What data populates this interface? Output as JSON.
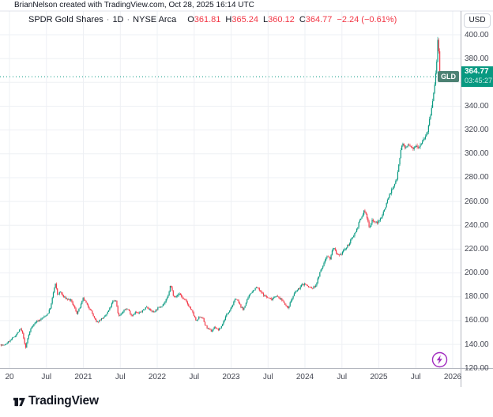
{
  "attribution": "BrianNelson created with TradingView.com, Oct 28, 2025 16:14 UTC",
  "legend": {
    "title": "SPDR Gold Shares",
    "sep": "·",
    "interval": "1D",
    "exchange": "NYSE Arca",
    "o_label": "O",
    "o": "361.81",
    "h_label": "H",
    "h": "365.24",
    "l_label": "L",
    "l": "360.12",
    "c_label": "C",
    "c": "364.77",
    "change": "−2.24 (−0.61%)"
  },
  "price_axis": {
    "currency": "USD",
    "badge": {
      "symbol": "GLD",
      "price": "364.77",
      "countdown": "03:45:27"
    }
  },
  "footer": {
    "brand": "TradingView"
  },
  "colors": {
    "up": "#089981",
    "down": "#f23645",
    "grid": "#eef0f4",
    "axis_line": "#b2b5be",
    "axis_text": "#434651",
    "badge_bg": "#089981",
    "tag_bg": "#4c8173",
    "lightning": "#a12cbf",
    "price_line": "#089981"
  },
  "chart_data": {
    "type": "candlestick",
    "symbol": "GLD",
    "title": "SPDR Gold Shares",
    "interval": "1D",
    "exchange": "NYSE Arca",
    "last_bar": {
      "open": 361.81,
      "high": 365.24,
      "low": 360.12,
      "close": 364.77,
      "change": -2.24,
      "change_pct": -0.61
    },
    "price_line_value": 364.77,
    "countdown": "03:45:27",
    "ylim": [
      120,
      410
    ],
    "x_range_years": [
      2019.87,
      2025.83
    ],
    "grid": true,
    "y_ticks": [
      {
        "v": 400,
        "label": "400.00"
      },
      {
        "v": 380,
        "label": "380.00"
      },
      {
        "v": 360,
        "label": "360.00"
      },
      {
        "v": 340,
        "label": "340.00"
      },
      {
        "v": 320,
        "label": "320.00"
      },
      {
        "v": 300,
        "label": "300.00"
      },
      {
        "v": 280,
        "label": "280.00"
      },
      {
        "v": 260,
        "label": "260.00"
      },
      {
        "v": 240,
        "label": "240.00"
      },
      {
        "v": 220,
        "label": "220.00"
      },
      {
        "v": 200,
        "label": "200.00"
      },
      {
        "v": 180,
        "label": "180.00"
      },
      {
        "v": 160,
        "label": "160.00"
      },
      {
        "v": 140,
        "label": "140.00"
      },
      {
        "v": 120,
        "label": "120.00"
      }
    ],
    "x_ticks": [
      {
        "label": "20",
        "t": 2020.0
      },
      {
        "label": "Jul",
        "t": 2020.5
      },
      {
        "label": "2021",
        "t": 2021.0
      },
      {
        "label": "Jul",
        "t": 2021.5
      },
      {
        "label": "2022",
        "t": 2022.0
      },
      {
        "label": "Jul",
        "t": 2022.5
      },
      {
        "label": "2023",
        "t": 2023.0
      },
      {
        "label": "Jul",
        "t": 2023.5
      },
      {
        "label": "2024",
        "t": 2024.0
      },
      {
        "label": "Jul",
        "t": 2024.5
      },
      {
        "label": "2025",
        "t": 2025.0
      },
      {
        "label": "Jul",
        "t": 2025.5
      },
      {
        "label": "2026",
        "t": 2026.0
      }
    ],
    "anchors": [
      [
        2019.872,
        140
      ],
      [
        2019.93,
        139
      ],
      [
        2020.0,
        143
      ],
      [
        2020.06,
        146
      ],
      [
        2020.1,
        149
      ],
      [
        2020.15,
        153
      ],
      [
        2020.185,
        148
      ],
      [
        2020.215,
        136
      ],
      [
        2020.25,
        146
      ],
      [
        2020.3,
        155
      ],
      [
        2020.36,
        159
      ],
      [
        2020.42,
        161
      ],
      [
        2020.47,
        163
      ],
      [
        2020.52,
        166
      ],
      [
        2020.56,
        172
      ],
      [
        2020.595,
        184
      ],
      [
        2020.62,
        191
      ],
      [
        2020.65,
        182
      ],
      [
        2020.69,
        184
      ],
      [
        2020.73,
        180
      ],
      [
        2020.78,
        178
      ],
      [
        2020.83,
        177
      ],
      [
        2020.87,
        172
      ],
      [
        2020.915,
        166
      ],
      [
        2020.96,
        172
      ],
      [
        2021.0,
        179
      ],
      [
        2021.05,
        173
      ],
      [
        2021.1,
        169
      ],
      [
        2021.14,
        163
      ],
      [
        2021.18,
        158
      ],
      [
        2021.23,
        161
      ],
      [
        2021.29,
        163
      ],
      [
        2021.34,
        168
      ],
      [
        2021.4,
        176
      ],
      [
        2021.44,
        177
      ],
      [
        2021.475,
        164
      ],
      [
        2021.52,
        166
      ],
      [
        2021.57,
        170
      ],
      [
        2021.61,
        169
      ],
      [
        2021.655,
        164
      ],
      [
        2021.7,
        167
      ],
      [
        2021.75,
        166
      ],
      [
        2021.8,
        168
      ],
      [
        2021.86,
        172
      ],
      [
        2021.9,
        169
      ],
      [
        2021.95,
        167
      ],
      [
        2022.0,
        170
      ],
      [
        2022.05,
        172
      ],
      [
        2022.1,
        175
      ],
      [
        2022.145,
        180
      ],
      [
        2022.18,
        190
      ],
      [
        2022.22,
        181
      ],
      [
        2022.26,
        180
      ],
      [
        2022.3,
        183
      ],
      [
        2022.34,
        179
      ],
      [
        2022.38,
        177
      ],
      [
        2022.43,
        172
      ],
      [
        2022.47,
        168
      ],
      [
        2022.53,
        159
      ],
      [
        2022.57,
        163
      ],
      [
        2022.61,
        163
      ],
      [
        2022.65,
        156
      ],
      [
        2022.69,
        153
      ],
      [
        2022.735,
        151
      ],
      [
        2022.78,
        155
      ],
      [
        2022.82,
        152
      ],
      [
        2022.85,
        153
      ],
      [
        2022.89,
        158
      ],
      [
        2022.93,
        164
      ],
      [
        2022.97,
        168
      ],
      [
        2023.02,
        173
      ],
      [
        2023.065,
        179
      ],
      [
        2023.11,
        174
      ],
      [
        2023.16,
        169
      ],
      [
        2023.21,
        176
      ],
      [
        2023.26,
        183
      ],
      [
        2023.31,
        186
      ],
      [
        2023.35,
        188
      ],
      [
        2023.4,
        184
      ],
      [
        2023.45,
        181
      ],
      [
        2023.5,
        179
      ],
      [
        2023.55,
        178
      ],
      [
        2023.6,
        181
      ],
      [
        2023.65,
        179
      ],
      [
        2023.71,
        176
      ],
      [
        2023.765,
        170
      ],
      [
        2023.82,
        178
      ],
      [
        2023.87,
        184
      ],
      [
        2023.92,
        187
      ],
      [
        2023.96,
        190
      ],
      [
        2024.0,
        191
      ],
      [
        2024.05,
        188
      ],
      [
        2024.1,
        187
      ],
      [
        2024.15,
        190
      ],
      [
        2024.2,
        200
      ],
      [
        2024.25,
        207
      ],
      [
        2024.295,
        215
      ],
      [
        2024.34,
        212
      ],
      [
        2024.385,
        222
      ],
      [
        2024.43,
        215
      ],
      [
        2024.47,
        214
      ],
      [
        2024.52,
        219
      ],
      [
        2024.56,
        221
      ],
      [
        2024.61,
        226
      ],
      [
        2024.65,
        231
      ],
      [
        2024.69,
        235
      ],
      [
        2024.73,
        242
      ],
      [
        2024.77,
        247
      ],
      [
        2024.805,
        253
      ],
      [
        2024.84,
        246
      ],
      [
        2024.875,
        238
      ],
      [
        2024.91,
        245
      ],
      [
        2024.95,
        242
      ],
      [
        2025.0,
        243
      ],
      [
        2025.04,
        248
      ],
      [
        2025.08,
        254
      ],
      [
        2025.12,
        262
      ],
      [
        2025.16,
        268
      ],
      [
        2025.2,
        272
      ],
      [
        2025.24,
        279
      ],
      [
        2025.28,
        296
      ],
      [
        2025.315,
        309
      ],
      [
        2025.35,
        305
      ],
      [
        2025.39,
        307
      ],
      [
        2025.43,
        306
      ],
      [
        2025.46,
        303
      ],
      [
        2025.5,
        308
      ],
      [
        2025.54,
        306
      ],
      [
        2025.58,
        310
      ],
      [
        2025.62,
        314
      ],
      [
        2025.66,
        319
      ],
      [
        2025.695,
        331
      ],
      [
        2025.73,
        345
      ],
      [
        2025.76,
        360
      ],
      [
        2025.78,
        375
      ],
      [
        2025.795,
        392
      ],
      [
        2025.803,
        401
      ],
      [
        2025.812,
        383
      ],
      [
        2025.82,
        368
      ],
      [
        2025.825,
        364.77
      ]
    ]
  }
}
